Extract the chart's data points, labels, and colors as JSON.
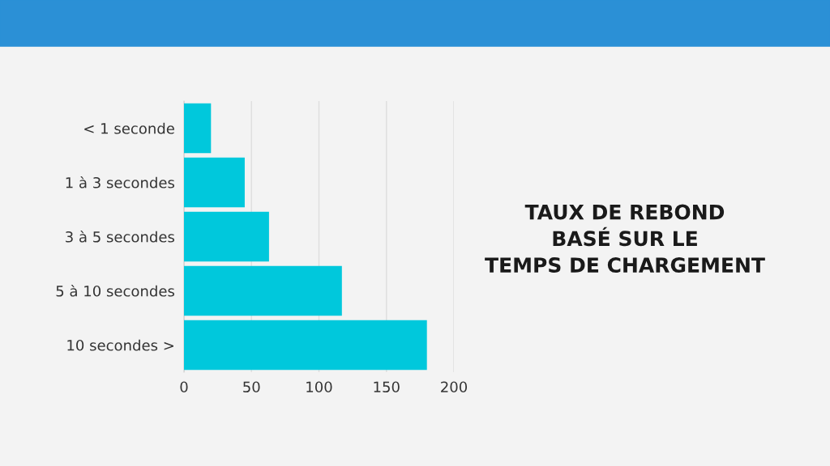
{
  "chart_data": {
    "type": "bar",
    "orientation": "horizontal",
    "title": "TAUX DE REBOND\nBASÉ SUR LE\nTEMPS DE CHARGEMENT",
    "categories": [
      "< 1 seconde",
      "1 à 3 secondes",
      "3 à 5 secondes",
      "5 à 10 secondes",
      "10 secondes >"
    ],
    "values": [
      20,
      45,
      63,
      117,
      180
    ],
    "color": "#00c8dc",
    "xlim": [
      0,
      200
    ],
    "xticks": [
      0,
      50,
      100,
      150,
      200
    ],
    "grid": "x"
  }
}
